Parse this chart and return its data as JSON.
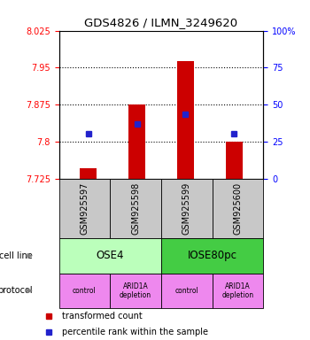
{
  "title": "GDS4826 / ILMN_3249620",
  "samples": [
    "GSM925597",
    "GSM925598",
    "GSM925599",
    "GSM925600"
  ],
  "bar_tops": [
    7.745,
    7.875,
    7.963,
    7.8
  ],
  "bar_bottom": 7.725,
  "blue_y": [
    7.815,
    7.835,
    7.855,
    7.815
  ],
  "bar_color": "#cc0000",
  "blue_color": "#2222cc",
  "ylim_left": [
    7.725,
    8.025
  ],
  "yticks_left": [
    7.725,
    7.8,
    7.875,
    7.95,
    8.025
  ],
  "ylim_right": [
    0,
    100
  ],
  "yticks_right": [
    0,
    25,
    50,
    75,
    100
  ],
  "ytick_labels_right": [
    "0",
    "25",
    "50",
    "75",
    "100%"
  ],
  "cell_line_labels": [
    "OSE4",
    "IOSE80pc"
  ],
  "cell_line_colors": [
    "#bbffbb",
    "#44cc44"
  ],
  "cell_line_spans": [
    [
      0,
      2
    ],
    [
      2,
      4
    ]
  ],
  "protocol_labels": [
    "control",
    "ARID1A\ndepletion",
    "control",
    "ARID1A\ndepletion"
  ],
  "protocol_color": "#ee88ee",
  "sample_box_color": "#c8c8c8",
  "legend_tc": "transformed count",
  "legend_pr": "percentile rank within the sample"
}
